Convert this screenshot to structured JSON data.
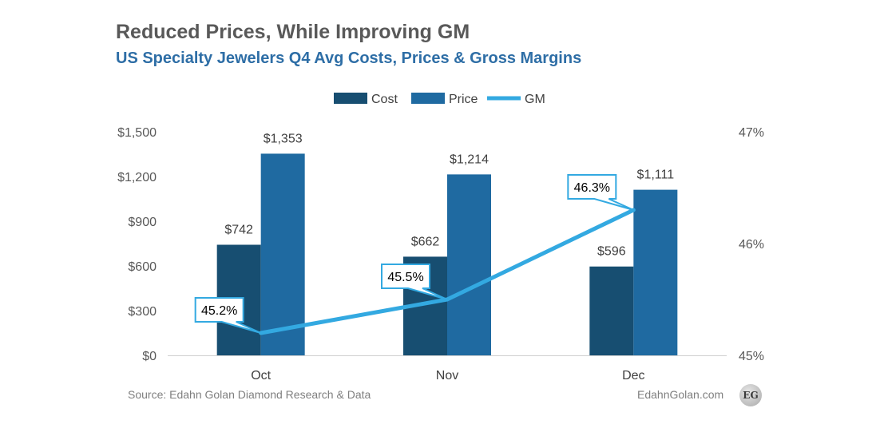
{
  "chart_data": {
    "type": "bar",
    "title": "Reduced Prices, While Improving GM",
    "subtitle": "US Specialty Jewelers Q4 Avg Costs, Prices & Gross Margins",
    "categories": [
      "Oct",
      "Nov",
      "Dec"
    ],
    "series": [
      {
        "name": "Cost",
        "type": "bar",
        "axis": "left",
        "values": [
          742,
          662,
          596
        ],
        "labels": [
          "$742",
          "$662",
          "$596"
        ],
        "color": "#174E71"
      },
      {
        "name": "Price",
        "type": "bar",
        "axis": "left",
        "values": [
          1353,
          1214,
          1111
        ],
        "labels": [
          "$1,353",
          "$1,214",
          "$1,111"
        ],
        "color": "#1F6AA1"
      },
      {
        "name": "GM",
        "type": "line",
        "axis": "right",
        "values": [
          45.2,
          45.5,
          46.3
        ],
        "labels": [
          "45.2%",
          "45.5%",
          "46.3%"
        ],
        "color": "#33A9E1"
      }
    ],
    "ylim_left": [
      0,
      1500
    ],
    "yticks_left": [
      "$0",
      "$300",
      "$600",
      "$900",
      "$1,200",
      "$1,500"
    ],
    "ylim_right": [
      45,
      47
    ],
    "yticks_right": [
      "45%",
      "46%",
      "47%"
    ],
    "legend": "top-center",
    "grid": false
  },
  "footer": {
    "source": "Source: Edahn Golan Diamond Research & Data",
    "site": "EdahnGolan.com",
    "logo_text": "EG"
  }
}
